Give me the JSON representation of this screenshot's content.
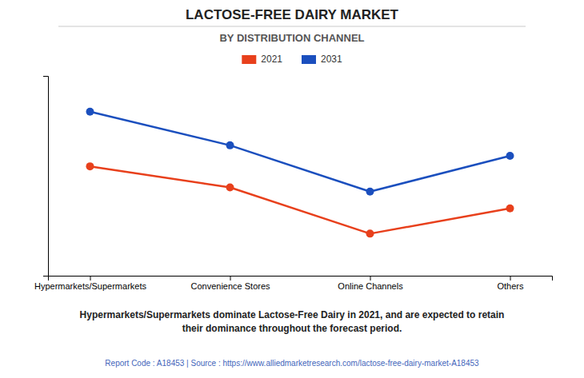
{
  "chart_data": {
    "type": "line",
    "title": "LACTOSE-FREE DAIRY MARKET",
    "subtitle": "BY DISTRIBUTION CHANNEL",
    "categories": [
      "Hypermarkets/Supermarkets",
      "Convenience Stores",
      "Online Channels",
      "Others"
    ],
    "series": [
      {
        "name": "2021",
        "color": "#E8401C",
        "values": [
          0.62,
          0.52,
          0.3,
          0.42
        ]
      },
      {
        "name": "2031",
        "color": "#1B4FBE",
        "values": [
          0.88,
          0.72,
          0.5,
          0.67
        ]
      }
    ],
    "ylim": [
      0.1,
      1.05
    ],
    "yticks": [],
    "grid": false,
    "tick_labels": "x",
    "legend": "top",
    "marker": "circle",
    "annotations": [
      "Hypermarkets/Supermarkets dominate Lactose-Free Dairy in 2021, and are expected to retain\ntheir dominance throughout the forecast period.",
      "Report Code : A18453  |  Source : https://www.alliedmarketresearch.com/lactose-free-dairy-market-A18453"
    ]
  }
}
